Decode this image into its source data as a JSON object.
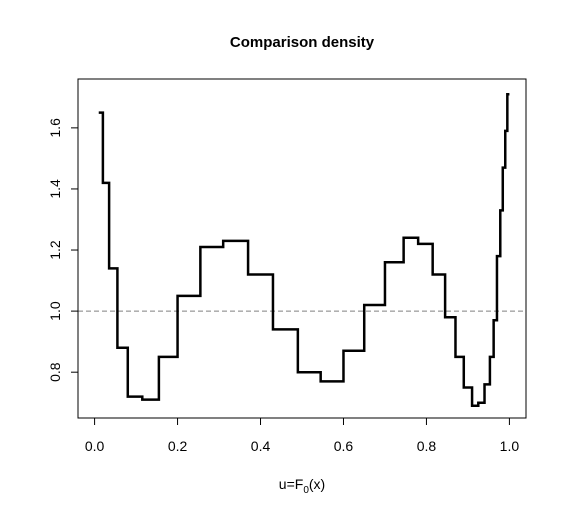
{
  "chart_data": {
    "type": "line",
    "title": "Comparison density",
    "xlabel": {
      "prefix": "u=F",
      "sub": "0",
      "suffix": "(x)"
    },
    "ylabel": "",
    "xlim": [
      -0.04,
      1.04
    ],
    "ylim": [
      0.65,
      1.76
    ],
    "x_ticks": [
      0.0,
      0.2,
      0.4,
      0.6,
      0.8,
      1.0
    ],
    "x_tick_labels": [
      "0.0",
      "0.2",
      "0.4",
      "0.6",
      "0.8",
      "1.0"
    ],
    "y_ticks": [
      0.8,
      1.0,
      1.2,
      1.4,
      1.6
    ],
    "y_tick_labels": [
      "0.8",
      "1.0",
      "1.2",
      "1.4",
      "1.6"
    ],
    "reference_line": {
      "y": 1.0,
      "style": "dashed",
      "color": "#808080"
    },
    "grid": false,
    "legend": "none",
    "line_color": "#000000",
    "series": [
      {
        "step": true,
        "x": [
          0.01,
          0.02,
          0.035,
          0.055,
          0.08,
          0.115,
          0.155,
          0.2,
          0.255,
          0.31,
          0.37,
          0.43,
          0.49,
          0.545,
          0.6,
          0.65,
          0.7,
          0.745,
          0.78,
          0.815,
          0.845,
          0.87,
          0.89,
          0.91,
          0.925,
          0.94,
          0.953,
          0.962,
          0.97,
          0.978,
          0.984,
          0.99,
          0.995,
          1.0
        ],
        "y": [
          1.65,
          1.42,
          1.14,
          0.88,
          0.72,
          0.71,
          0.85,
          1.05,
          1.21,
          1.23,
          1.12,
          0.94,
          0.8,
          0.77,
          0.87,
          1.02,
          1.16,
          1.24,
          1.22,
          1.12,
          0.98,
          0.85,
          0.75,
          0.69,
          0.7,
          0.76,
          0.85,
          0.97,
          1.18,
          1.33,
          1.47,
          1.59,
          1.71,
          1.71
        ]
      }
    ]
  }
}
